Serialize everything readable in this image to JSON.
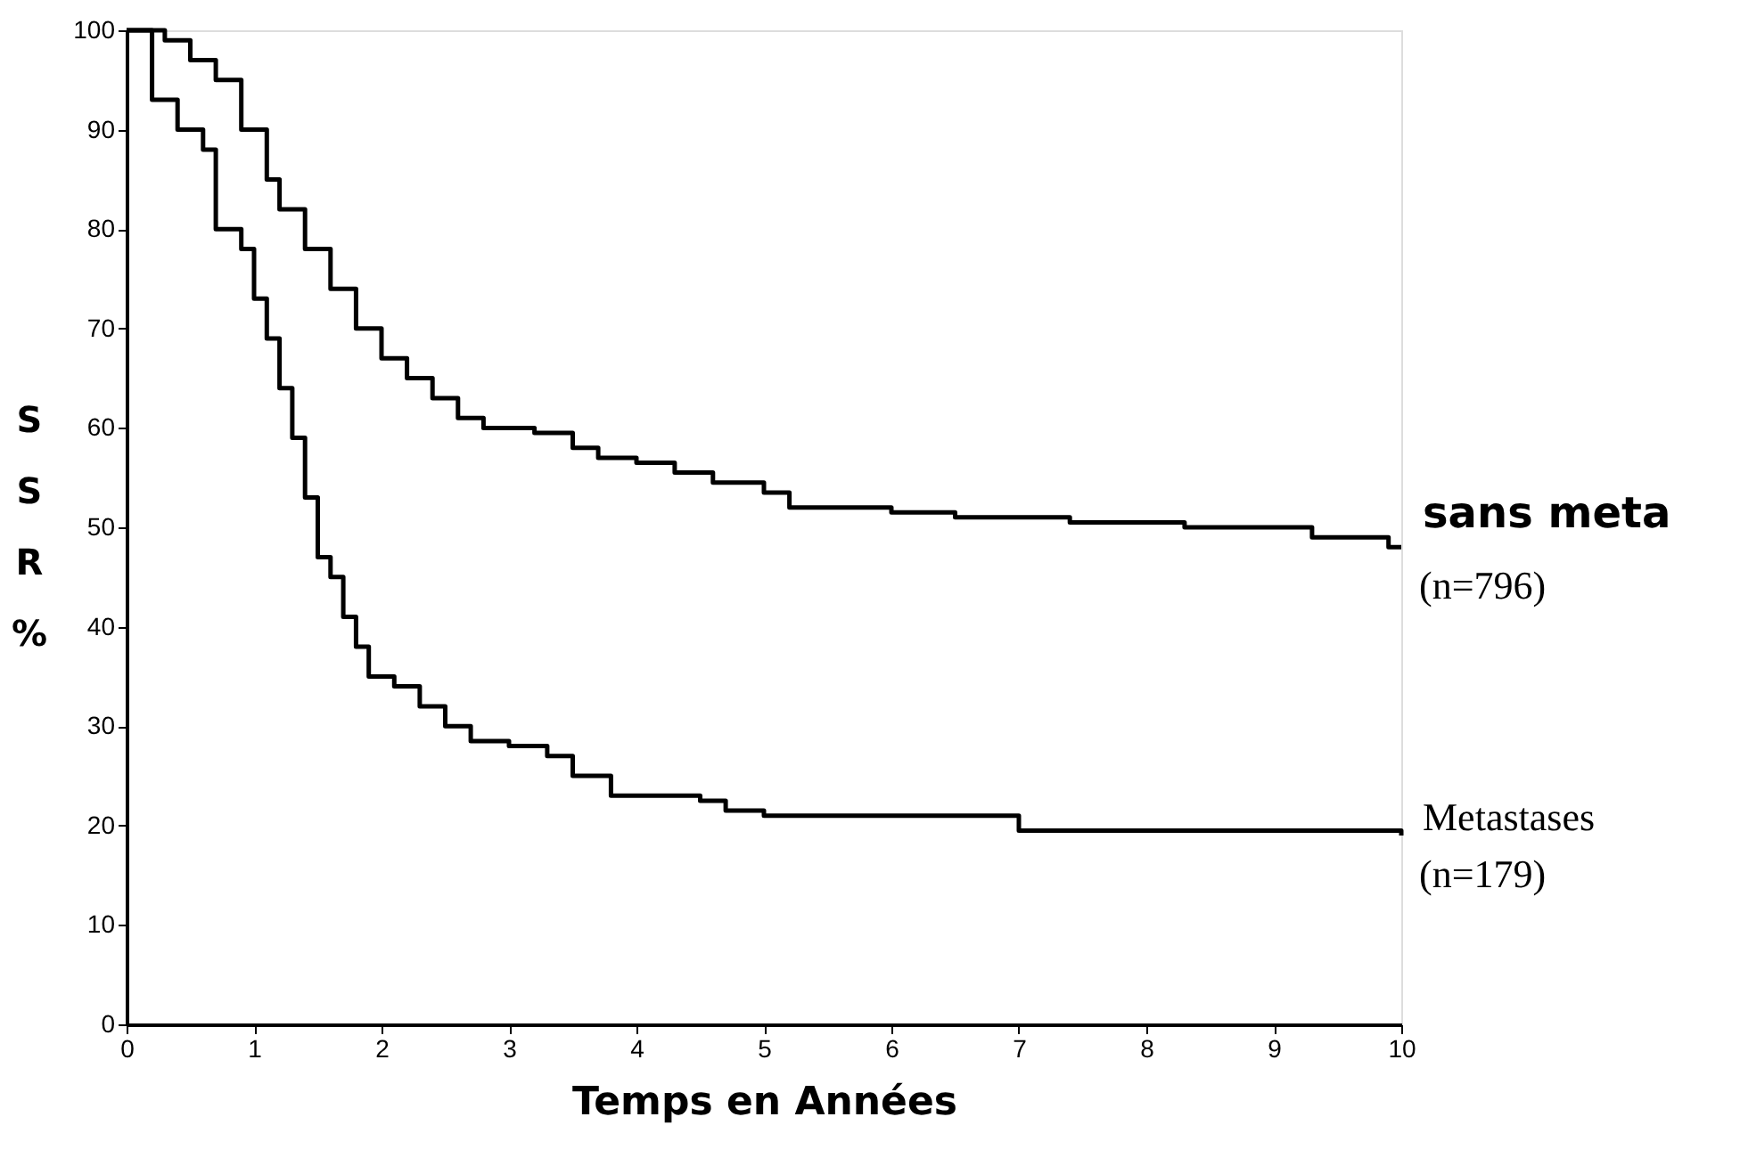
{
  "chart_data": {
    "type": "step",
    "xlabel": "Temps en Années",
    "ylabel": "S S R %",
    "series": [
      {
        "name": "sans meta",
        "color": "#000000",
        "x": [
          0,
          0.3,
          0.5,
          0.7,
          0.9,
          1.1,
          1.2,
          1.4,
          1.6,
          1.8,
          2.0,
          2.2,
          2.4,
          2.6,
          2.8,
          3.2,
          3.5,
          3.7,
          4.0,
          4.3,
          4.6,
          5.0,
          5.2,
          6.0,
          6.5,
          7.4,
          8.3,
          9.3,
          9.9,
          10
        ],
        "values": [
          100,
          99,
          97,
          95,
          90,
          85,
          82,
          78,
          74,
          70,
          67,
          65,
          63,
          61,
          60,
          59.5,
          58,
          57,
          56.5,
          55.5,
          54.5,
          53.5,
          52,
          51.5,
          51,
          50.5,
          50,
          49,
          48,
          48
        ]
      },
      {
        "name": "Metastases",
        "color": "#000000",
        "x": [
          0,
          0.2,
          0.4,
          0.6,
          0.7,
          0.9,
          1.0,
          1.1,
          1.2,
          1.3,
          1.4,
          1.5,
          1.6,
          1.7,
          1.8,
          1.9,
          2.1,
          2.3,
          2.5,
          2.7,
          3.0,
          3.3,
          3.5,
          3.8,
          4.5,
          4.7,
          5.0,
          7.0,
          10
        ],
        "values": [
          100,
          93,
          90,
          88,
          80,
          78,
          73,
          69,
          64,
          59,
          53,
          47,
          45,
          41,
          38,
          35,
          34,
          32,
          30,
          28.5,
          28,
          27,
          25,
          23,
          22.5,
          21.5,
          21,
          19.5,
          19
        ]
      }
    ],
    "annotations": [
      "(n=796)",
      "(n=179)"
    ],
    "xlim": [
      0,
      10
    ],
    "xticks": [
      0,
      1,
      2,
      3,
      4,
      5,
      6,
      7,
      8,
      9,
      10
    ],
    "ylim": [
      0,
      100
    ],
    "yticks": [
      0,
      10,
      20,
      30,
      40,
      50,
      60,
      70,
      80,
      90,
      100
    ],
    "grid": false,
    "marker": "none",
    "line_style": "solid"
  }
}
